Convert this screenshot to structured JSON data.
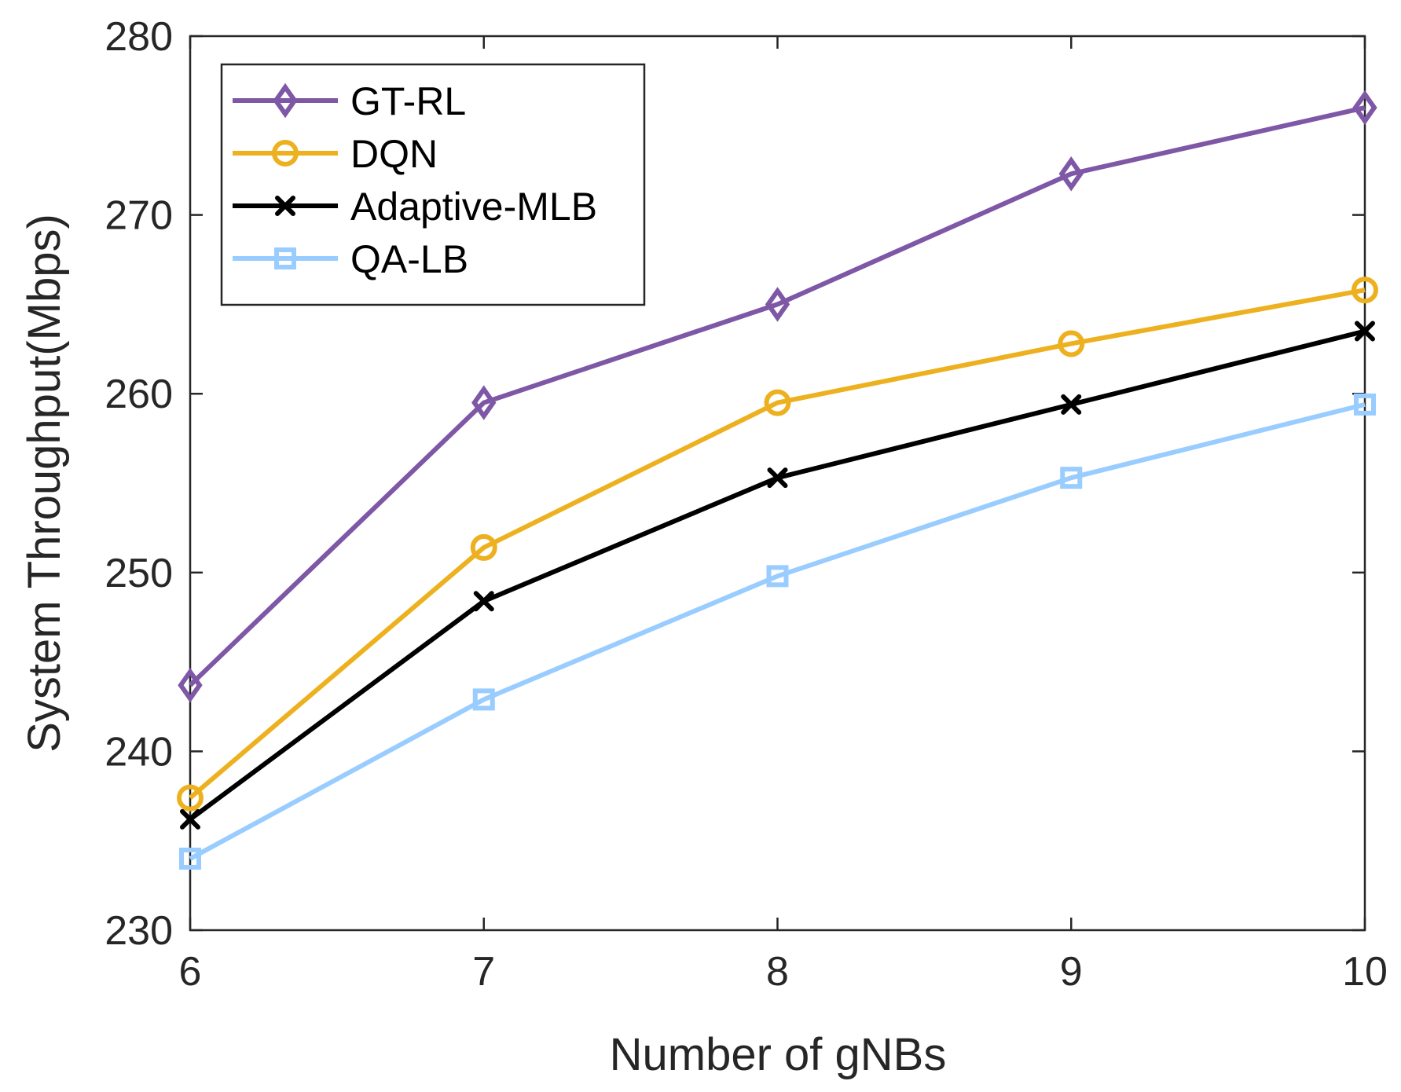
{
  "chart_data": {
    "type": "line",
    "title": "",
    "xlabel": "Number of gNBs",
    "ylabel": "System Throughput(Mbps)",
    "x": [
      6,
      7,
      8,
      9,
      10
    ],
    "xticks": [
      "6",
      "7",
      "8",
      "9",
      "10"
    ],
    "xlim": [
      6,
      10
    ],
    "yticks": [
      "230",
      "240",
      "250",
      "260",
      "270",
      "280"
    ],
    "ylim": [
      230,
      280
    ],
    "grid": false,
    "legend_position": "top-left",
    "series": [
      {
        "name": "GT-RL",
        "color": "#7E57A6",
        "marker": "diamond",
        "values": [
          243.7,
          259.5,
          265.0,
          272.3,
          276.0
        ]
      },
      {
        "name": "DQN",
        "color": "#EDB120",
        "marker": "circle",
        "values": [
          237.4,
          251.4,
          259.5,
          262.8,
          265.8
        ]
      },
      {
        "name": "Adaptive-MLB",
        "color": "#000000",
        "marker": "x",
        "values": [
          236.2,
          248.4,
          255.3,
          259.4,
          263.5
        ]
      },
      {
        "name": "QA-LB",
        "color": "#99CCFF",
        "marker": "square",
        "values": [
          234.0,
          242.9,
          249.8,
          255.3,
          259.4
        ]
      }
    ]
  }
}
